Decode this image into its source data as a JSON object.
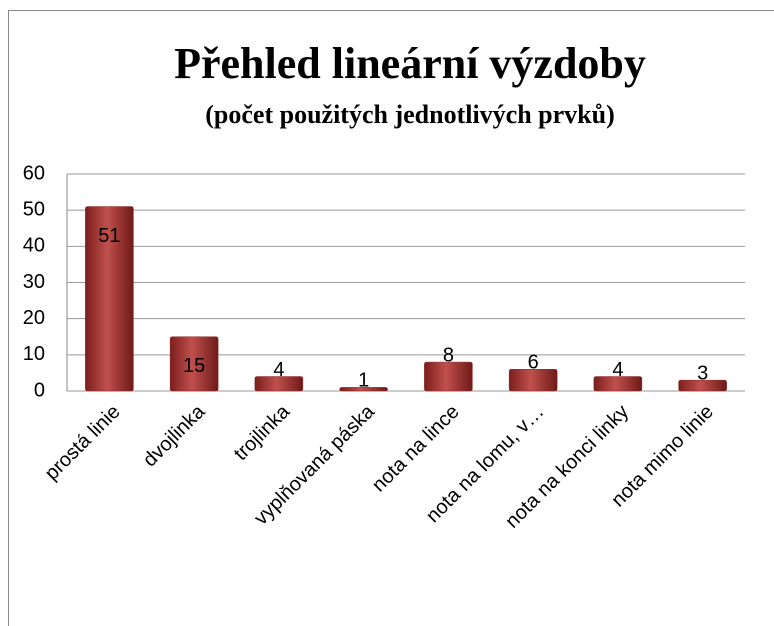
{
  "chart_data": {
    "type": "bar",
    "title": "Přehled lineární výzdoby",
    "subtitle": "(počet použitých jednotlivých prvků)",
    "categories": [
      "prostá linie",
      "dvojlinka",
      "trojlinka",
      "vyplňovaná páska",
      "nota na lince",
      "nota na lomu, v…",
      "nota na konci linky",
      "nota mimo linie"
    ],
    "values": [
      51,
      15,
      4,
      1,
      8,
      6,
      4,
      3
    ],
    "color": "#c0504d",
    "ylim": [
      0,
      60
    ],
    "yticks": [
      0,
      10,
      20,
      30,
      40,
      50,
      60
    ],
    "grid": true
  }
}
